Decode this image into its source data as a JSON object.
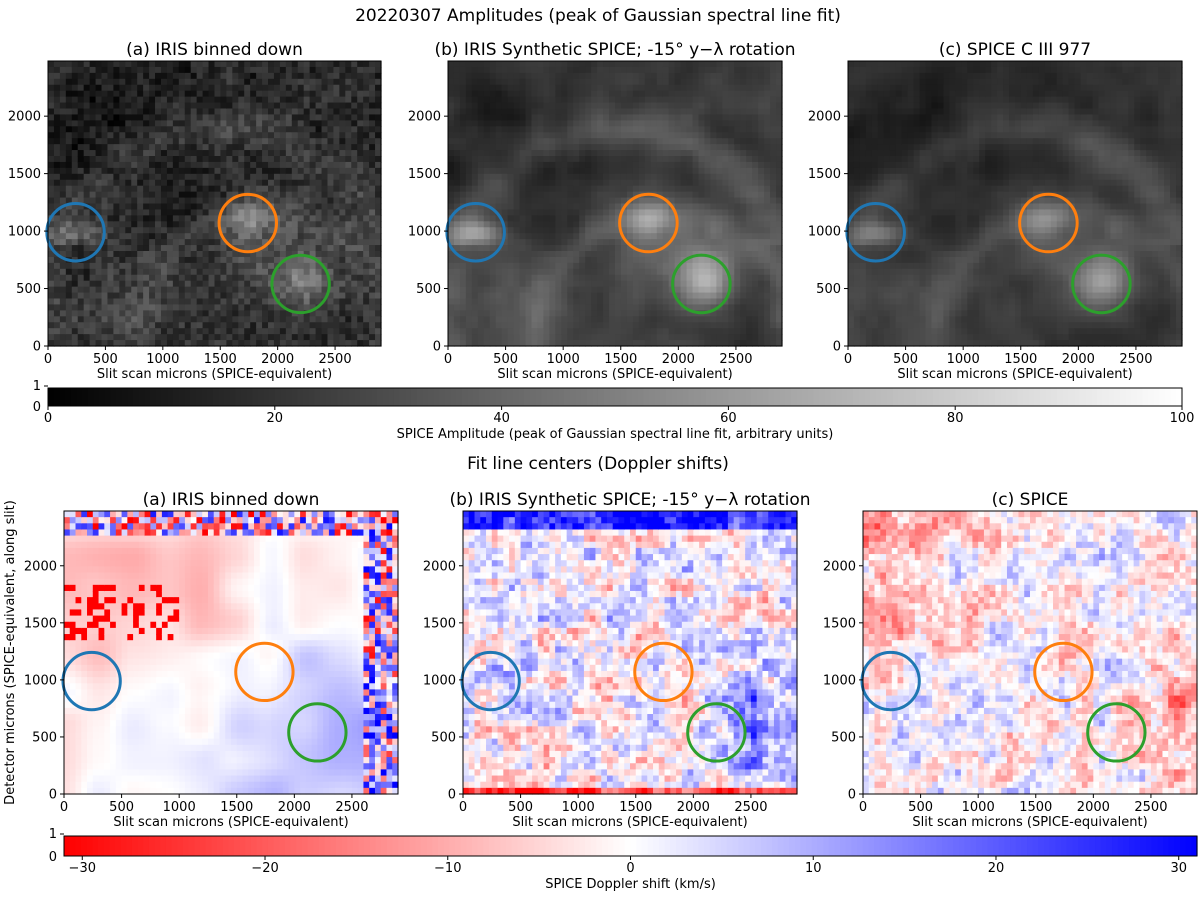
{
  "chart_data": [
    {
      "type": "heatmap",
      "section_title": "20220307 Amplitudes (peak of Gaussian spectral line fit)",
      "colormap": "gray",
      "panels": [
        {
          "title": "(a) IRIS binned down",
          "xlabel": "Slit scan microns (SPICE-equivalent)",
          "ylabel": ""
        },
        {
          "title": "(b) IRIS Synthetic SPICE; -15° y−λ rotation",
          "xlabel": "Slit scan microns (SPICE-equivalent)",
          "ylabel": ""
        },
        {
          "title": "(c) SPICE C III 977",
          "xlabel": "Slit scan microns (SPICE-equivalent)",
          "ylabel": ""
        }
      ],
      "xlim": [
        0,
        2900
      ],
      "ylim": [
        0,
        2480
      ],
      "xticks": [
        "0",
        "500",
        "1000",
        "1500",
        "2000",
        "2500"
      ],
      "yticks": [
        "0",
        "500",
        "1000",
        "1500",
        "2000"
      ],
      "colorbar": {
        "label": "SPICE Amplitude (peak of Gaussian spectral line fit, arbitrary units)",
        "range": [
          0,
          100
        ],
        "ticks": [
          "0",
          "20",
          "40",
          "60",
          "80",
          "100"
        ],
        "inset_ticks": [
          "1",
          "0"
        ]
      }
    },
    {
      "type": "heatmap",
      "section_title": "Fit line centers (Doppler shifts)",
      "colormap": "bwr",
      "panels": [
        {
          "title": "(a) IRIS binned down",
          "xlabel": "Slit scan microns (SPICE-equivalent)",
          "ylabel": "Detector microns (SPICE-equivalent, along slit)"
        },
        {
          "title": "(b) IRIS Synthetic SPICE; -15° y−λ rotation",
          "xlabel": "Slit scan microns (SPICE-equivalent)",
          "ylabel": ""
        },
        {
          "title": "(c) SPICE",
          "xlabel": "Slit scan microns (SPICE-equivalent)",
          "ylabel": ""
        }
      ],
      "xlim": [
        0,
        2900
      ],
      "ylim": [
        0,
        2480
      ],
      "xticks": [
        "0",
        "500",
        "1000",
        "1500",
        "2000",
        "2500"
      ],
      "yticks": [
        "0",
        "500",
        "1000",
        "1500",
        "2000"
      ],
      "colorbar": {
        "label": "SPICE Doppler shift (km/s)",
        "range": [
          -31,
          31
        ],
        "ticks": [
          "−30",
          "−20",
          "−10",
          "0",
          "10",
          "20",
          "30"
        ],
        "inset_ticks": [
          "1",
          "0"
        ]
      }
    }
  ],
  "regions": [
    {
      "name": "blue",
      "color": "#1f77b4",
      "x": 240,
      "y": 990,
      "r": 250
    },
    {
      "name": "orange",
      "color": "#ff7f0e",
      "x": 1740,
      "y": 1070,
      "r": 250
    },
    {
      "name": "green",
      "color": "#2ca02c",
      "x": 2200,
      "y": 540,
      "r": 250
    }
  ]
}
